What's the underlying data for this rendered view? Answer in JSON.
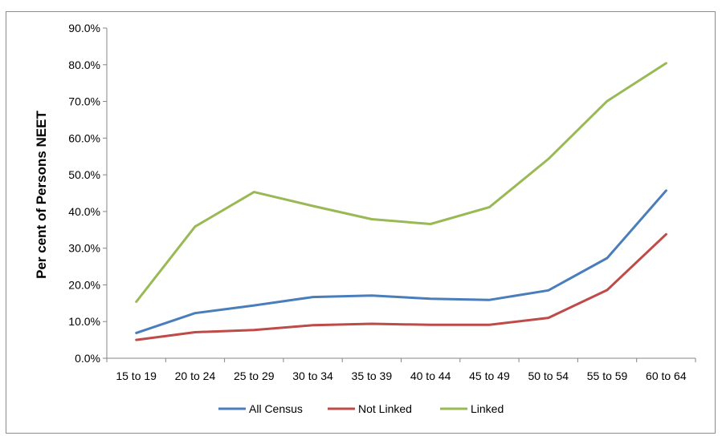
{
  "chart_data": {
    "type": "line",
    "title": "",
    "xlabel": "",
    "ylabel": "Per cent of Persons NEET",
    "categories": [
      "15 to 19",
      "20 to 24",
      "25 to 29",
      "30 to 34",
      "35 to 39",
      "40 to 44",
      "45 to 49",
      "50 to 54",
      "55 to 59",
      "60 to 64"
    ],
    "ylim": [
      0,
      90
    ],
    "yticks": [
      "0.0%",
      "10.0%",
      "20.0%",
      "30.0%",
      "40.0%",
      "50.0%",
      "60.0%",
      "70.0%",
      "80.0%",
      "90.0%"
    ],
    "grid": false,
    "legend_position": "bottom",
    "series": [
      {
        "name": "All Census",
        "color": "#4a7ebb",
        "values": [
          6.9,
          12.3,
          14.4,
          16.7,
          17.1,
          16.2,
          15.9,
          18.5,
          27.3,
          45.7
        ]
      },
      {
        "name": "Not Linked",
        "color": "#be4b48",
        "values": [
          5.0,
          7.1,
          7.7,
          9.0,
          9.4,
          9.1,
          9.1,
          11.0,
          18.6,
          33.8
        ]
      },
      {
        "name": "Linked",
        "color": "#98b954",
        "values": [
          15.4,
          35.9,
          45.3,
          41.5,
          37.9,
          36.6,
          41.2,
          54.3,
          70.1,
          80.4
        ]
      }
    ]
  }
}
